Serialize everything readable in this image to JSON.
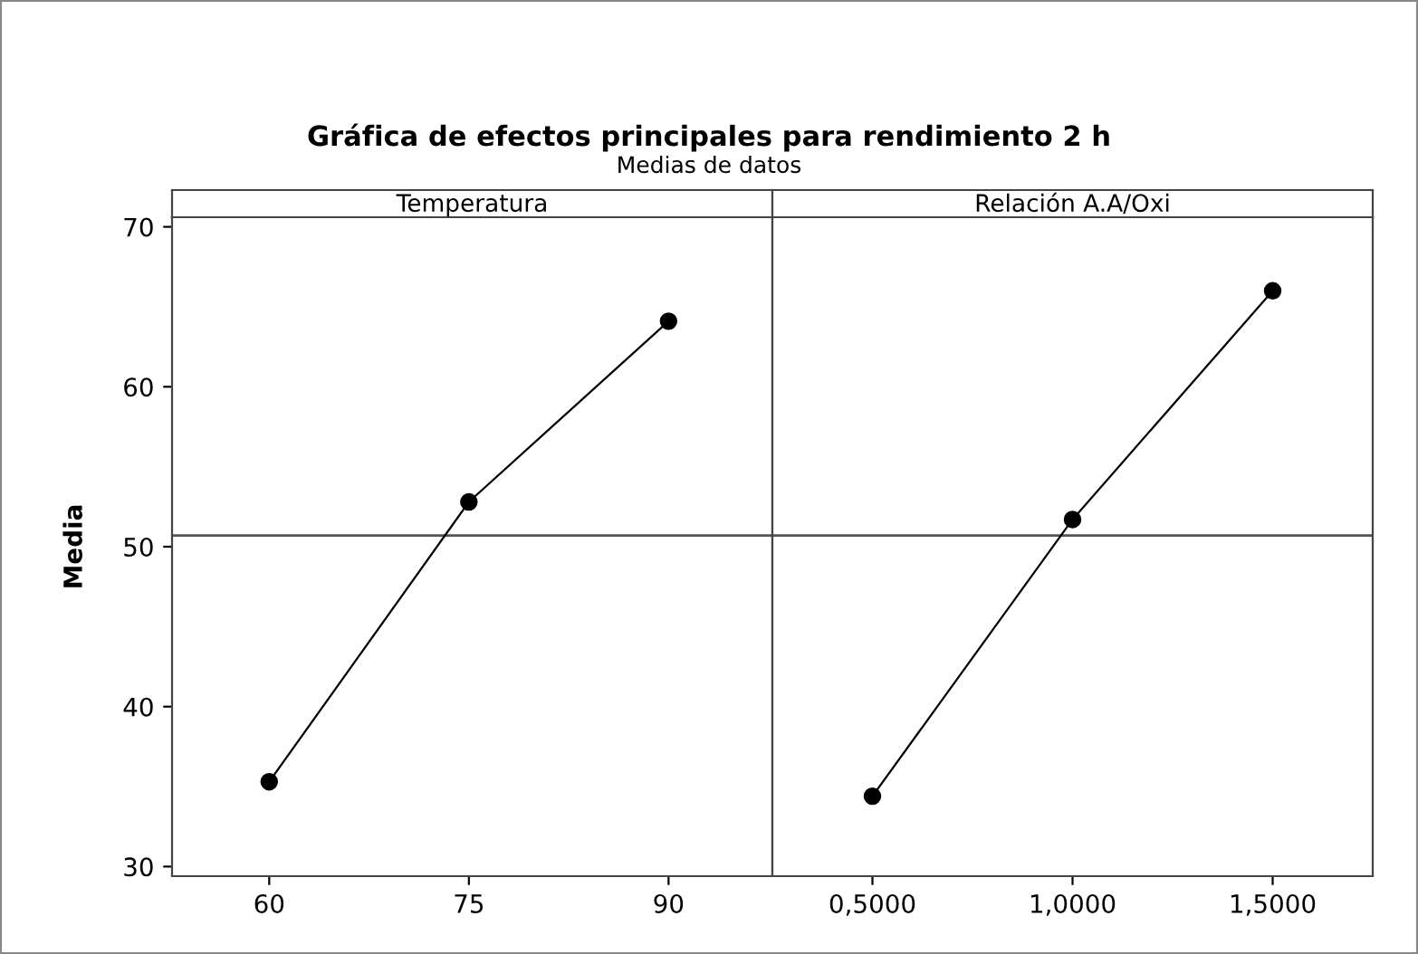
{
  "chart_data": [
    {
      "type": "line",
      "title": "Gráfica de efectos principales para rendimiento 2 h",
      "subtitle": "Medias de datos",
      "xlabel": "Temperatura",
      "ylabel": "Media",
      "x": [
        60,
        75,
        90
      ],
      "values": [
        35.3,
        52.8,
        64.1
      ],
      "color": "#000000",
      "marker": "circle",
      "line_style": "solid",
      "xlim": [
        52.7,
        97.8
      ],
      "xticks": [
        60,
        75,
        90
      ],
      "ylim": [
        29.4,
        70.6
      ],
      "yticks": [
        30,
        40,
        50,
        60,
        70
      ],
      "grid": false,
      "ref_lines": [
        {
          "axis": "y",
          "value": 50.7,
          "color": "#555555"
        }
      ]
    },
    {
      "type": "line",
      "xlabel": "Relación A.A/Oxi",
      "categories": [
        "0,5000",
        "1,0000",
        "1,5000"
      ],
      "values": [
        34.4,
        51.7,
        66.0
      ],
      "color": "#000000",
      "marker": "circle",
      "line_style": "solid",
      "ylim": [
        29.4,
        70.6
      ],
      "yticks": [
        30,
        40,
        50,
        60,
        70
      ],
      "tick_labels": "x",
      "grid": false,
      "ref_lines": [
        {
          "axis": "y",
          "value": 50.7,
          "color": "#555555"
        }
      ]
    }
  ]
}
